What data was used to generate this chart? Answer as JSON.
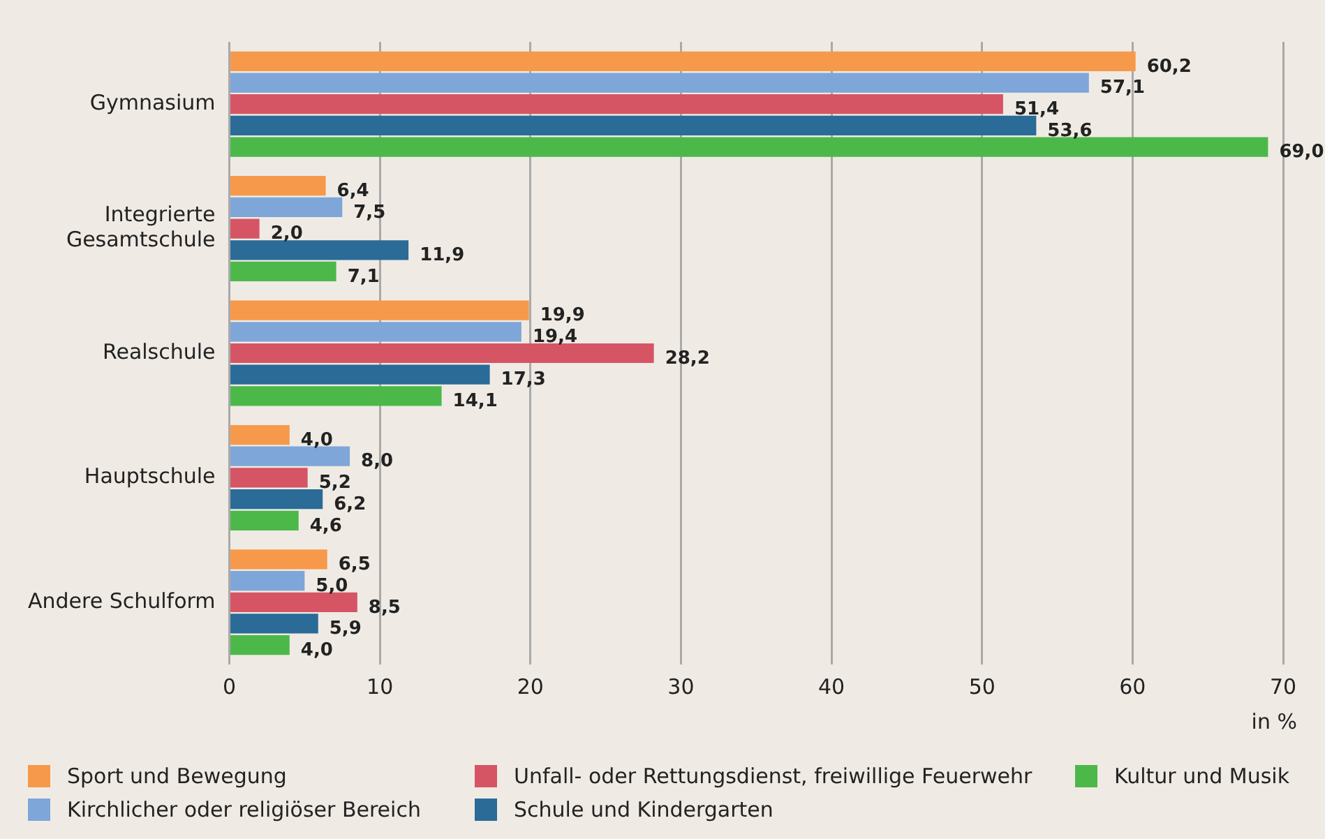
{
  "chart_data": {
    "type": "bar",
    "orientation": "horizontal",
    "xlabel": "in %",
    "categories": [
      "Gymnasium",
      "Integrierte Gesamtschule",
      "Realschule",
      "Hauptschule",
      "Andere Schulform"
    ],
    "series": [
      {
        "name": "Sport und Bewegung",
        "color": "#f7994a",
        "values": [
          60.2,
          6.4,
          19.9,
          4.0,
          6.5
        ]
      },
      {
        "name": "Kirchlicher oder religiöser Bereich",
        "color": "#7ea6d8",
        "values": [
          57.1,
          7.5,
          19.4,
          8.0,
          5.0
        ]
      },
      {
        "name": "Unfall- oder Rettungsdienst, freiwillige Feuerwehr",
        "color": "#d65565",
        "values": [
          51.4,
          2.0,
          28.2,
          5.2,
          8.5
        ]
      },
      {
        "name": "Schule und Kindergarten",
        "color": "#2a6b98",
        "values": [
          53.6,
          11.9,
          17.3,
          6.2,
          5.9
        ]
      },
      {
        "name": "Kultur und Musik",
        "color": "#4cb84a",
        "values": [
          69.0,
          7.1,
          14.1,
          4.6,
          4.0
        ]
      }
    ],
    "value_labels": [
      [
        "60,2",
        "6,4",
        "19,9",
        "4,0",
        "6,5"
      ],
      [
        "57,1",
        "7,5",
        "19,4",
        "8,0",
        "5,0"
      ],
      [
        "51,4",
        "2,0",
        "28,2",
        "5,2",
        "8,5"
      ],
      [
        "53,6",
        "11,9",
        "17,3",
        "6,2",
        "5,9"
      ],
      [
        "69,0",
        "7,1",
        "14,1",
        "4,6",
        "4,0"
      ]
    ],
    "xlim": [
      0,
      70
    ],
    "xticks": [
      0,
      10,
      20,
      30,
      40,
      50,
      60,
      70
    ],
    "grid": "x",
    "legend": "bottom"
  }
}
